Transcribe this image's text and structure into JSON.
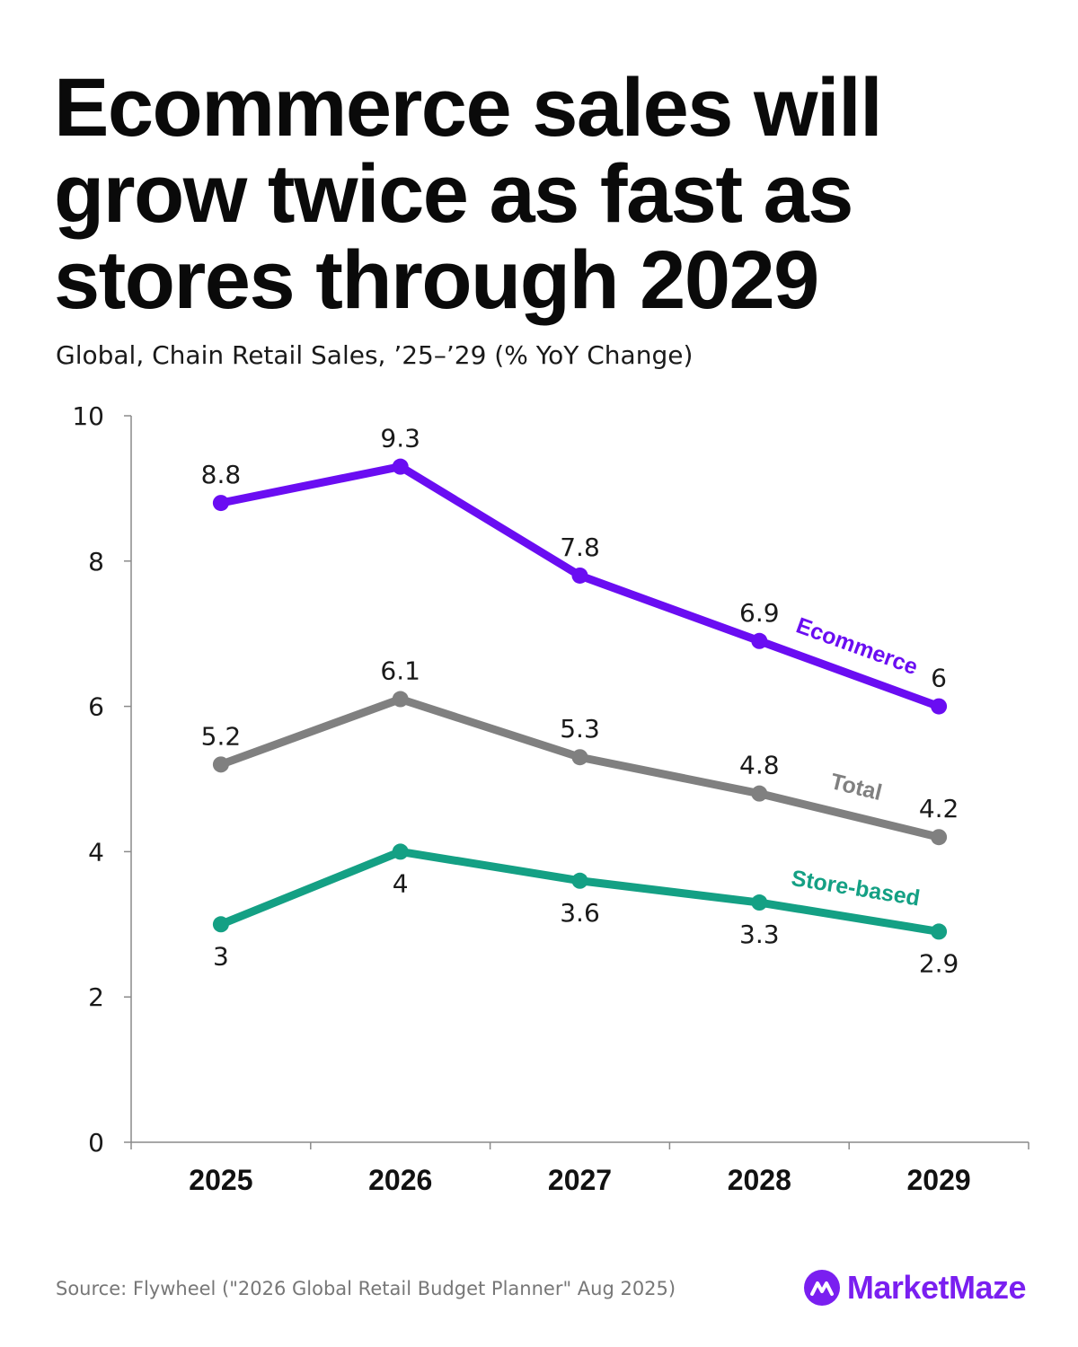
{
  "header": {
    "title": "Ecommerce sales will grow twice as fast as stores through 2029",
    "subtitle": "Global, Chain Retail Sales, ’25–’29 (% YoY Change)"
  },
  "footer": {
    "source": "Source: Flywheel (\"2026 Global Retail Budget Planner\" Aug 2025)",
    "brand_name": "MarketMaze",
    "brand_color": "#7a1ff0",
    "brand_icon": "mountain-peaks-logo-icon"
  },
  "chart_data": {
    "type": "line",
    "categories": [
      "2025",
      "2026",
      "2027",
      "2028",
      "2029"
    ],
    "ylim": [
      0,
      10
    ],
    "yticks": [
      0,
      2,
      4,
      6,
      8,
      10
    ],
    "grid": false,
    "legend": "inline labels next to lines",
    "series": [
      {
        "name": "Ecommerce",
        "color": "#6a0df2",
        "values": [
          8.8,
          9.3,
          7.8,
          6.9,
          6
        ],
        "labels": [
          "8.8",
          "9.3",
          "7.8",
          "6.9",
          "6"
        ],
        "label_side": "above"
      },
      {
        "name": "Total",
        "color": "#808080",
        "values": [
          5.2,
          6.1,
          5.3,
          4.8,
          4.2
        ],
        "labels": [
          "5.2",
          "6.1",
          "5.3",
          "4.8",
          "4.2"
        ],
        "label_side": "above"
      },
      {
        "name": "Store-based",
        "color": "#14a084",
        "values": [
          3,
          4,
          3.6,
          3.3,
          2.9
        ],
        "labels": [
          "3",
          "4",
          "3.6",
          "3.3",
          "2.9"
        ],
        "label_side": "below"
      }
    ]
  }
}
